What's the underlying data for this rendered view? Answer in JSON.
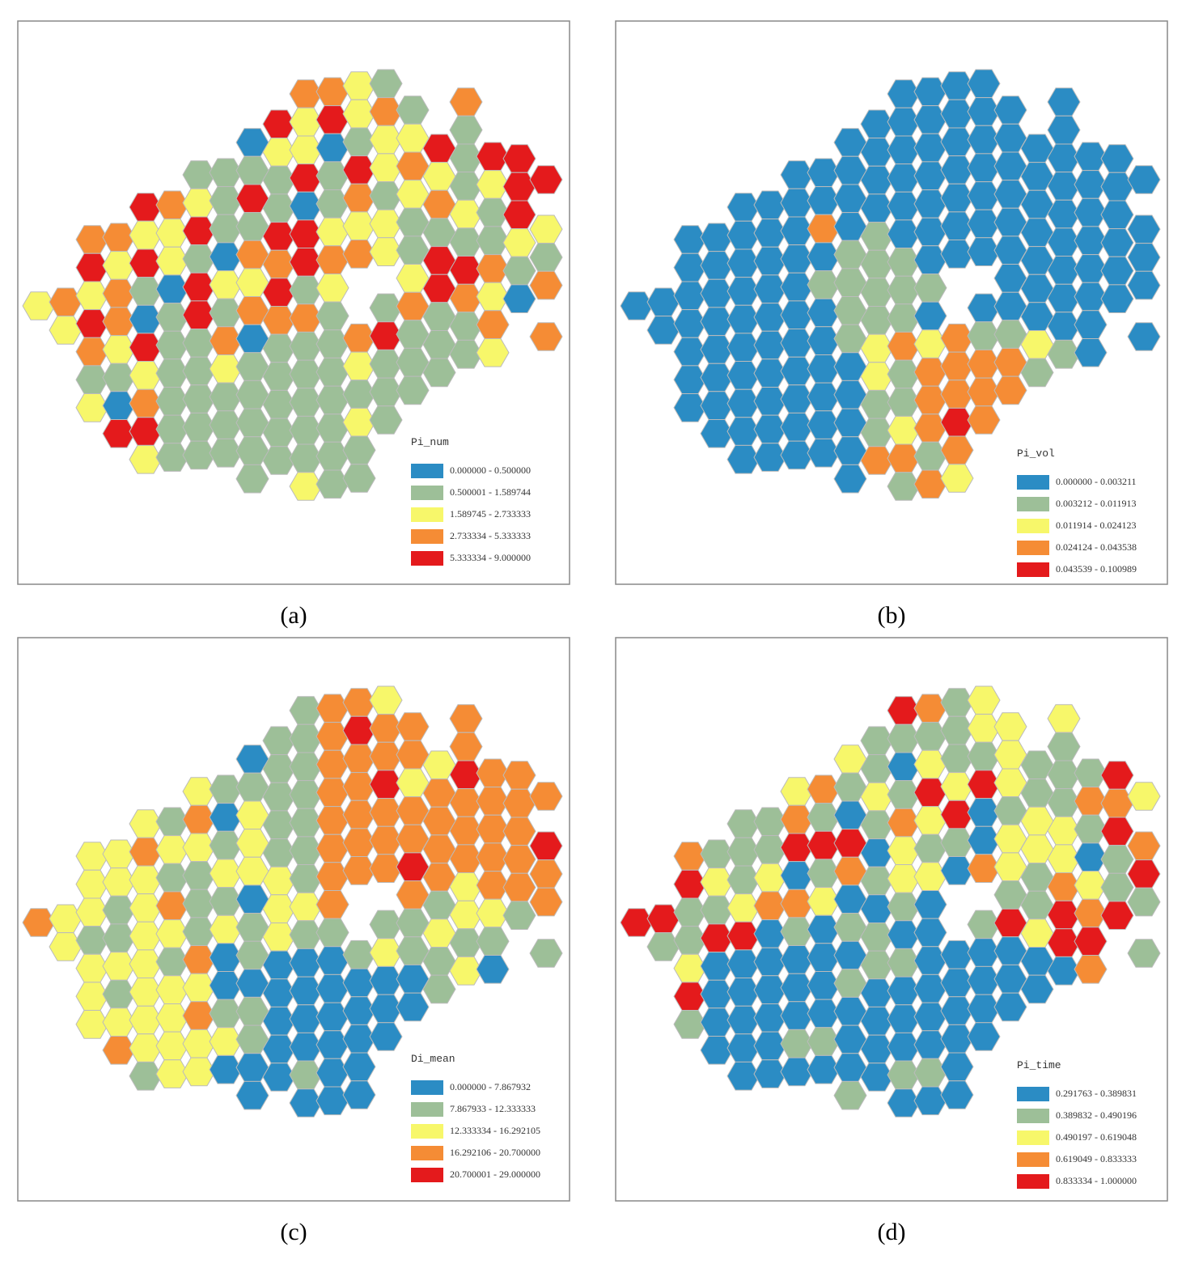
{
  "colors": [
    "#2b8cc4",
    "#9dbf98",
    "#f7f76a",
    "#f58c35",
    "#e41a1c"
  ],
  "panels": [
    {
      "label": "(a)",
      "legend_title": "Pi_num",
      "legend": [
        "0.000000 - 0.500000",
        "0.500001 - 1.589744",
        "1.589745 - 2.733333",
        "2.733334 - 5.333333",
        "5.333334 - 9.000000"
      ]
    },
    {
      "label": "(b)",
      "legend_title": "Pi_vol",
      "legend": [
        "0.000000 - 0.003211",
        "0.003212 - 0.011913",
        "0.011914 - 0.024123",
        "0.024124 - 0.043538",
        "0.043539 - 0.100989"
      ]
    },
    {
      "label": "(c)",
      "legend_title": "Di_mean",
      "legend": [
        "0.000000 - 7.867932",
        "7.867933 - 12.333333",
        "12.333334 - 16.292105",
        "16.292106 - 20.700000",
        "20.700001 - 29.000000"
      ]
    },
    {
      "label": "(d)",
      "legend_title": "Pi_time",
      "legend": [
        "0.291763 - 0.389831",
        "0.389832 - 0.490196",
        "0.490197 - 0.619048",
        "0.619049 - 0.833333",
        "0.833334 - 1.000000"
      ]
    }
  ]
}
